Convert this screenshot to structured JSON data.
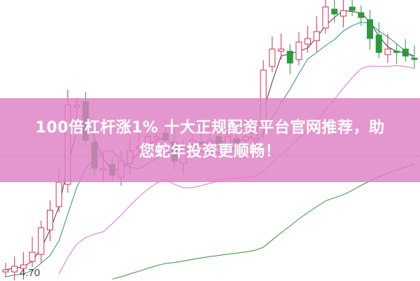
{
  "banner": {
    "line1": "100倍杠杆涨1% 十大正规配资平台官网推荐，助",
    "line2": "您蛇年投资更顺畅！"
  },
  "chart_data": {
    "type": "candlestick",
    "low_label": "4.70",
    "colors": {
      "up": "#d0304a",
      "down": "#2a9a3a",
      "ma_short": "#5a2a5a",
      "ma_mid": "#2a8a8a",
      "ma_long": "#e070d0",
      "ma_longest": "#3a8a3a"
    },
    "close": [
      4.75,
      4.8,
      4.82,
      5.0,
      5.35,
      5.6,
      6.0,
      7.1,
      7.1,
      6.6,
      6.2,
      6.2,
      6.1,
      6.3,
      6.45,
      6.5,
      6.65,
      6.65,
      6.6,
      6.3,
      6.5,
      6.6,
      6.55,
      6.6,
      6.55,
      6.65,
      6.55,
      6.65,
      6.8,
      7.6,
      7.9,
      7.9,
      7.7,
      8.0,
      8.05,
      8.15,
      8.5,
      8.4,
      8.45,
      8.45,
      8.35,
      8.05,
      7.85,
      7.9,
      7.85,
      7.8,
      7.75
    ],
    "grid": false
  }
}
